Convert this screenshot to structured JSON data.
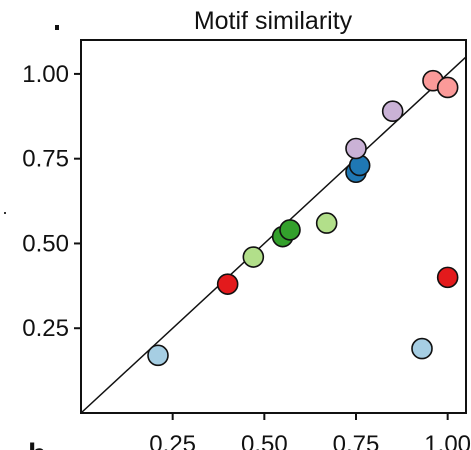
{
  "chart_data": {
    "type": "scatter",
    "title": "Motif similarity",
    "xlim": [
      0.0,
      1.05
    ],
    "ylim": [
      0.0,
      1.1
    ],
    "x_ticks": [
      0.25,
      0.5,
      0.75,
      1.0
    ],
    "x_tick_labels": [
      "0.25",
      "0.50",
      "0.75",
      "1.00"
    ],
    "y_ticks": [
      0.25,
      0.5,
      0.75,
      1.0
    ],
    "y_tick_labels": [
      "0.25",
      "0.50",
      "0.75",
      "1.00"
    ],
    "reference_line": "identity",
    "grid": false,
    "points": [
      {
        "x": 0.21,
        "y": 0.17,
        "color": "#a6cee3"
      },
      {
        "x": 0.4,
        "y": 0.38,
        "color": "#e31a1c"
      },
      {
        "x": 0.47,
        "y": 0.46,
        "color": "#b2df8a"
      },
      {
        "x": 0.55,
        "y": 0.52,
        "color": "#33a02c"
      },
      {
        "x": 0.57,
        "y": 0.54,
        "color": "#33a02c"
      },
      {
        "x": 0.67,
        "y": 0.56,
        "color": "#b2df8a"
      },
      {
        "x": 0.75,
        "y": 0.71,
        "color": "#1f78b4"
      },
      {
        "x": 0.76,
        "y": 0.73,
        "color": "#1f78b4"
      },
      {
        "x": 0.75,
        "y": 0.78,
        "color": "#cab2d6"
      },
      {
        "x": 0.85,
        "y": 0.89,
        "color": "#cab2d6"
      },
      {
        "x": 0.96,
        "y": 0.98,
        "color": "#fb9a99"
      },
      {
        "x": 1.0,
        "y": 0.96,
        "color": "#fb9a99"
      },
      {
        "x": 1.0,
        "y": 0.4,
        "color": "#e31a1c"
      },
      {
        "x": 0.93,
        "y": 0.19,
        "color": "#a6cee3"
      }
    ]
  },
  "panel_label": "b",
  "axis_color": "#111111"
}
